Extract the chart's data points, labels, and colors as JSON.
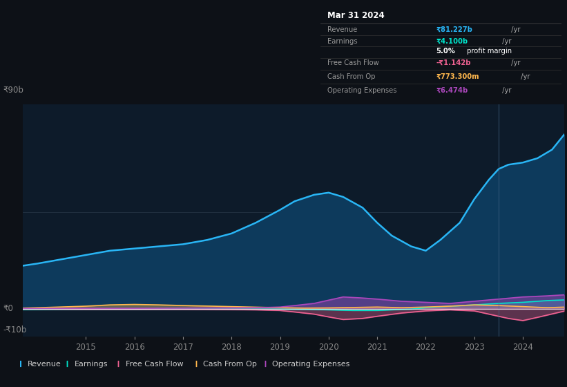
{
  "bg_color": "#0d1117",
  "chart_bg": "#0d1b2a",
  "ylabel_top": "₹90b",
  "ylabel_zero": "₹0",
  "ylabel_neg": "-₹10b",
  "ylim": [
    -13,
    95
  ],
  "xlim": [
    2013.7,
    2024.85
  ],
  "x_ticks": [
    2015,
    2016,
    2017,
    2018,
    2019,
    2020,
    2021,
    2022,
    2023,
    2024
  ],
  "revenue_color": "#29b6f6",
  "revenue_fill": "#0d3a5c",
  "earnings_color": "#00e5cc",
  "fcf_color": "#f06292",
  "cashop_color": "#ffb74d",
  "opex_color": "#ab47bc",
  "legend_items": [
    {
      "label": "Revenue",
      "color": "#29b6f6"
    },
    {
      "label": "Earnings",
      "color": "#00e5cc"
    },
    {
      "label": "Free Cash Flow",
      "color": "#f06292"
    },
    {
      "label": "Cash From Op",
      "color": "#ffb74d"
    },
    {
      "label": "Operating Expenses",
      "color": "#ab47bc"
    }
  ],
  "info_box": {
    "title": "Mar 31 2024",
    "rows": [
      {
        "label": "Revenue",
        "value": "₹81.227b /yr",
        "value_color": "#29b6f6"
      },
      {
        "label": "Earnings",
        "value": "₹4.100b /yr",
        "value_color": "#00e5cc"
      },
      {
        "label": "",
        "value": "5.0% profit margin",
        "value_color": "#ffffff"
      },
      {
        "label": "Free Cash Flow",
        "value": "-₹1.142b /yr",
        "value_color": "#f06292"
      },
      {
        "label": "Cash From Op",
        "value": "₹773.300m /yr",
        "value_color": "#ffb74d"
      },
      {
        "label": "Operating Expenses",
        "value": "₹6.474b /yr",
        "value_color": "#ab47bc"
      }
    ]
  },
  "revenue_x": [
    2013.7,
    2014.0,
    2014.5,
    2015.0,
    2015.5,
    2016.0,
    2016.5,
    2017.0,
    2017.5,
    2018.0,
    2018.5,
    2019.0,
    2019.3,
    2019.7,
    2020.0,
    2020.3,
    2020.7,
    2021.0,
    2021.3,
    2021.7,
    2022.0,
    2022.3,
    2022.7,
    2023.0,
    2023.3,
    2023.5,
    2023.7,
    2024.0,
    2024.3,
    2024.6,
    2024.85
  ],
  "revenue_y": [
    20,
    21,
    23,
    25,
    27,
    28,
    29,
    30,
    32,
    35,
    40,
    46,
    50,
    53,
    54,
    52,
    47,
    40,
    34,
    29,
    27,
    32,
    40,
    51,
    60,
    65,
    67,
    68,
    70,
    74,
    81
  ],
  "earnings_x": [
    2013.7,
    2015.0,
    2016.0,
    2017.0,
    2018.0,
    2019.0,
    2019.5,
    2020.0,
    2020.5,
    2021.0,
    2021.3,
    2021.7,
    2022.0,
    2022.5,
    2023.0,
    2023.5,
    2024.0,
    2024.5,
    2024.85
  ],
  "earnings_y": [
    -0.4,
    -0.3,
    -0.3,
    -0.2,
    -0.2,
    -0.2,
    -0.3,
    -0.5,
    -0.8,
    -0.8,
    -0.5,
    -0.2,
    0.5,
    1.2,
    1.8,
    2.5,
    3.0,
    3.8,
    4.1
  ],
  "fcf_x": [
    2013.7,
    2015.0,
    2016.0,
    2017.0,
    2018.0,
    2018.5,
    2019.0,
    2019.3,
    2019.7,
    2020.0,
    2020.3,
    2020.7,
    2021.0,
    2021.5,
    2022.0,
    2022.5,
    2023.0,
    2023.3,
    2023.7,
    2024.0,
    2024.3,
    2024.85
  ],
  "fcf_y": [
    -0.2,
    -0.3,
    -0.3,
    -0.3,
    -0.4,
    -0.5,
    -0.8,
    -1.5,
    -2.5,
    -3.8,
    -5.0,
    -4.5,
    -3.5,
    -2.0,
    -1.0,
    -0.5,
    -1.0,
    -2.5,
    -4.5,
    -5.5,
    -4.0,
    -1.1
  ],
  "cashop_x": [
    2013.7,
    2014.3,
    2015.0,
    2015.5,
    2016.0,
    2016.5,
    2017.0,
    2018.0,
    2019.0,
    2019.5,
    2020.0,
    2020.5,
    2021.0,
    2021.5,
    2022.0,
    2022.5,
    2023.0,
    2023.5,
    2024.0,
    2024.5,
    2024.85
  ],
  "cashop_y": [
    0.3,
    0.7,
    1.2,
    1.8,
    2.0,
    1.8,
    1.5,
    1.0,
    0.5,
    0.3,
    0.4,
    0.6,
    0.8,
    0.5,
    0.8,
    1.2,
    1.8,
    1.5,
    1.0,
    0.5,
    0.77
  ],
  "opex_x": [
    2013.7,
    2015.0,
    2016.0,
    2017.0,
    2018.0,
    2018.5,
    2019.0,
    2019.3,
    2019.7,
    2020.0,
    2020.3,
    2020.7,
    2021.0,
    2021.5,
    2022.0,
    2022.5,
    2023.0,
    2023.5,
    2024.0,
    2024.5,
    2024.85
  ],
  "opex_y": [
    0.1,
    0.2,
    0.2,
    0.3,
    0.4,
    0.5,
    0.8,
    1.5,
    2.5,
    4.0,
    5.5,
    5.0,
    4.5,
    3.5,
    3.0,
    2.5,
    3.5,
    4.5,
    5.5,
    6.0,
    6.47
  ],
  "divider_x": 2023.5
}
